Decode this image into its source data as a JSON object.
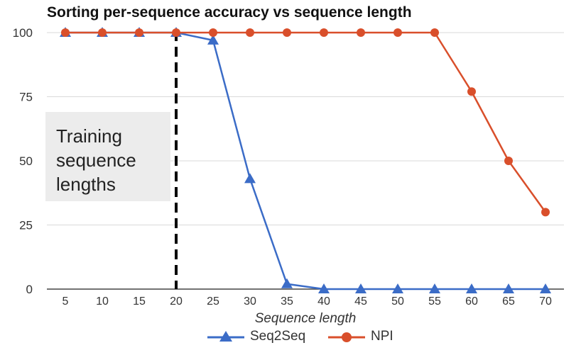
{
  "chart_data": {
    "type": "line",
    "title": "Sorting per-sequence accuracy vs sequence length",
    "xlabel": "Sequence length",
    "ylabel": "",
    "x": [
      5,
      10,
      15,
      20,
      25,
      30,
      35,
      40,
      45,
      50,
      55,
      60,
      65,
      70
    ],
    "yticks": [
      0,
      25,
      50,
      75,
      100
    ],
    "ylim": [
      0,
      100
    ],
    "grid": true,
    "legend_position": "bottom",
    "series": [
      {
        "name": "Seq2Seq",
        "color": "#3b6cc7",
        "marker": "triangle",
        "values": [
          100,
          100,
          100,
          100,
          97,
          43,
          2,
          0,
          0,
          0,
          0,
          0,
          0,
          0
        ]
      },
      {
        "name": "NPI",
        "color": "#d94f2b",
        "marker": "circle",
        "values": [
          100,
          100,
          100,
          100,
          100,
          100,
          100,
          100,
          100,
          100,
          100,
          77,
          50,
          30
        ]
      }
    ],
    "vline_x": 20,
    "annotation": "Training\nsequence\nlengths"
  }
}
